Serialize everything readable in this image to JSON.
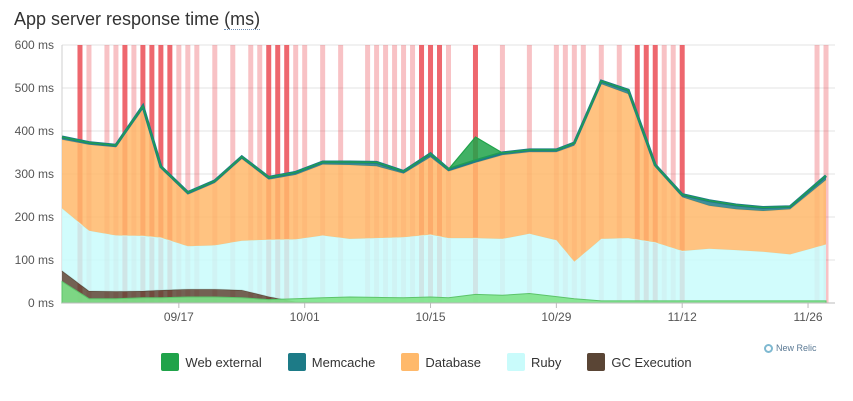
{
  "header": {
    "title": "App server response time",
    "unit": "(ms)"
  },
  "brand": {
    "label": "New Relic",
    "icon": "new-relic-logo-icon"
  },
  "chart_data": {
    "type": "area",
    "stacked": true,
    "title": "App server response time (ms)",
    "xlabel": "",
    "ylabel": "",
    "ylim": [
      0,
      600
    ],
    "yticks": [
      0,
      100,
      200,
      300,
      400,
      500,
      600
    ],
    "ytick_labels": [
      "0 ms",
      "100 ms",
      "200 ms",
      "300 ms",
      "400 ms",
      "500 ms",
      "600 ms"
    ],
    "xlim": [
      "2014-09-04",
      "2014-11-29"
    ],
    "xticks": [
      {
        "label": "09/17",
        "date": "2014-09-17"
      },
      {
        "label": "10/01",
        "date": "2014-10-01"
      },
      {
        "label": "10/15",
        "date": "2014-10-15"
      },
      {
        "label": "10/29",
        "date": "2014-10-29"
      },
      {
        "label": "11/12",
        "date": "2014-11-12"
      },
      {
        "label": "11/26",
        "date": "2014-11-26"
      }
    ],
    "grid": true,
    "legend_position": "bottom",
    "x": [
      "2014-09-04",
      "2014-09-07",
      "2014-09-10",
      "2014-09-13",
      "2014-09-15",
      "2014-09-18",
      "2014-09-21",
      "2014-09-24",
      "2014-09-27",
      "2014-09-30",
      "2014-10-03",
      "2014-10-06",
      "2014-10-09",
      "2014-10-12",
      "2014-10-15",
      "2014-10-17",
      "2014-10-20",
      "2014-10-23",
      "2014-10-26",
      "2014-10-29",
      "2014-10-31",
      "2014-11-03",
      "2014-11-06",
      "2014-11-09",
      "2014-11-12",
      "2014-11-15",
      "2014-11-18",
      "2014-11-21",
      "2014-11-24",
      "2014-11-28"
    ],
    "series": [
      {
        "name": "GC Execution",
        "color": "#5a4535",
        "values": [
          75,
          28,
          27,
          28,
          30,
          32,
          32,
          30,
          15,
          3,
          2,
          1,
          1,
          1,
          1,
          1,
          1,
          1,
          1,
          1,
          1,
          1,
          1,
          1,
          1,
          1,
          1,
          1,
          1,
          1
        ]
      },
      {
        "name": "Ruby",
        "color": "#c9fbfb",
        "values": [
          145,
          140,
          130,
          128,
          122,
          100,
          102,
          115,
          132,
          145,
          155,
          148,
          150,
          152,
          158,
          150,
          150,
          148,
          160,
          145,
          95,
          148,
          150,
          140,
          120,
          125,
          122,
          118,
          112,
          135
        ]
      },
      {
        "name": "Database",
        "color": "#ffb96b",
        "values": [
          160,
          200,
          205,
          295,
          160,
          120,
          145,
          190,
          140,
          150,
          165,
          172,
          167,
          148,
          180,
          155,
          175,
          195,
          190,
          205,
          270,
          360,
          335,
          175,
          125,
          100,
          95,
          95,
          105,
          150
        ]
      },
      {
        "name": "Memcache",
        "color": "#1d7b87",
        "values": [
          6,
          5,
          5,
          7,
          5,
          5,
          5,
          5,
          5,
          6,
          6,
          7,
          9,
          5,
          8,
          5,
          5,
          5,
          5,
          5,
          6,
          7,
          9,
          5,
          6,
          12,
          10,
          8,
          6,
          10
        ]
      },
      {
        "name": "Web external",
        "color": "#20a34a",
        "values": [
          0,
          0,
          0,
          0,
          0,
          0,
          0,
          0,
          0,
          0,
          0,
          0,
          0,
          0,
          0,
          0,
          55,
          0,
          0,
          0,
          0,
          0,
          0,
          0,
          0,
          0,
          0,
          0,
          0,
          0
        ]
      }
    ],
    "throughput_series": {
      "name": "",
      "values": [
        50,
        10,
        10,
        12,
        12,
        14,
        14,
        12,
        8,
        10,
        12,
        14,
        13,
        12,
        14,
        12,
        20,
        18,
        22,
        15,
        10,
        5,
        5,
        5,
        5,
        5,
        5,
        5,
        5,
        5
      ]
    },
    "alert_markers": {
      "color": "#e8343e",
      "dates": [
        "2014-09-06",
        "2014-09-07",
        "2014-09-09",
        "2014-09-10",
        "2014-09-11",
        "2014-09-12",
        "2014-09-13",
        "2014-09-14",
        "2014-09-15",
        "2014-09-16",
        "2014-09-17",
        "2014-09-18",
        "2014-09-19",
        "2014-09-21",
        "2014-09-23",
        "2014-09-25",
        "2014-09-26",
        "2014-09-27",
        "2014-09-28",
        "2014-09-29",
        "2014-09-30",
        "2014-10-01",
        "2014-10-03",
        "2014-10-05",
        "2014-10-08",
        "2014-10-09",
        "2014-10-10",
        "2014-10-11",
        "2014-10-12",
        "2014-10-13",
        "2014-10-14",
        "2014-10-15",
        "2014-10-16",
        "2014-10-17",
        "2014-10-20",
        "2014-10-23",
        "2014-10-26",
        "2014-10-29",
        "2014-10-30",
        "2014-10-31",
        "2014-11-01",
        "2014-11-03",
        "2014-11-05",
        "2014-11-07",
        "2014-11-08",
        "2014-11-09",
        "2014-11-10",
        "2014-11-11",
        "2014-11-12",
        "2014-11-27",
        "2014-11-28"
      ],
      "strong": [
        "2014-09-06",
        "2014-09-11",
        "2014-09-13",
        "2014-09-14",
        "2014-09-15",
        "2014-09-16",
        "2014-09-27",
        "2014-09-28",
        "2014-09-29",
        "2014-10-14",
        "2014-10-15",
        "2014-10-16",
        "2014-10-20",
        "2014-11-07",
        "2014-11-08",
        "2014-11-09",
        "2014-11-12"
      ]
    }
  }
}
